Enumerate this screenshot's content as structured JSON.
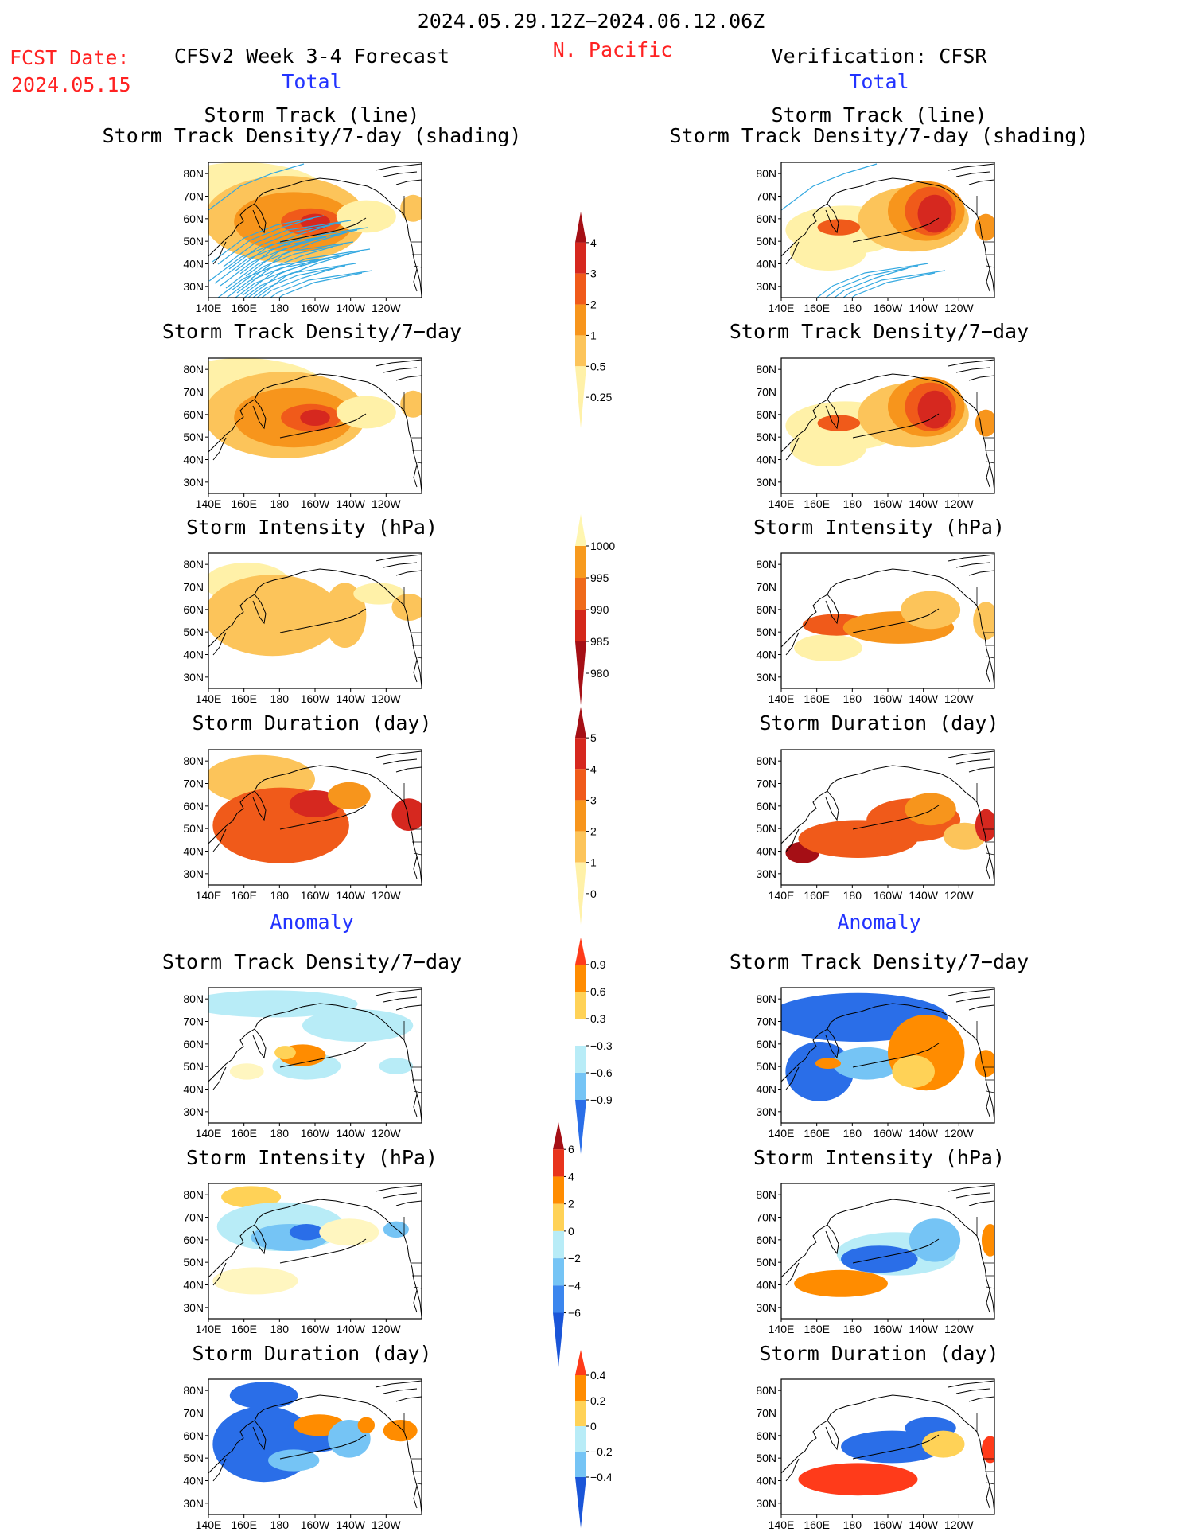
{
  "header": {
    "date_range": "2024.05.29.12Z−2024.06.12.06Z",
    "region": "N. Pacific",
    "fcst_label": "FCST Date:",
    "fcst_date": "2024.05.15",
    "model_title": "CFSv2 Week 3-4 Forecast",
    "verification_title": "Verification: CFSR"
  },
  "sections": {
    "total": "Total",
    "anomaly": "Anomaly"
  },
  "panel_titles": {
    "track_line": "Storm Track (line)",
    "track_shading": "Storm Track Density/7-day (shading)",
    "density": "Storm Track Density/7−day",
    "intensity": "Storm Intensity (hPa)",
    "duration": "Storm Duration (day)"
  },
  "map_axes": {
    "lat_ticks": [
      "80N",
      "70N",
      "60N",
      "50N",
      "40N",
      "30N"
    ],
    "lon_ticks": [
      "140E",
      "160E",
      "180",
      "160W",
      "140W",
      "120W"
    ]
  },
  "colorbars": {
    "density": {
      "labels": [
        "4",
        "3",
        "2",
        "1",
        "0.5",
        "0.25"
      ],
      "colors": [
        "#a50f15",
        "#d6281f",
        "#f05a1a",
        "#f7951c",
        "#fcc45a",
        "#fff1a8"
      ]
    },
    "intensity": {
      "labels": [
        "1000",
        "995",
        "990",
        "985",
        "980"
      ],
      "colors": [
        "#fff6b0",
        "#f79a1e",
        "#ef6a1a",
        "#d4281a",
        "#a50f15"
      ]
    },
    "duration": {
      "labels": [
        "5",
        "4",
        "3",
        "2",
        "1",
        "0"
      ],
      "colors": [
        "#a50f15",
        "#d6281f",
        "#f05a1a",
        "#f7951c",
        "#fcc45a",
        "#fff1a8"
      ]
    },
    "density_anom": {
      "labels": [
        "0.9",
        "0.6",
        "0.3",
        "−0.3",
        "−0.6",
        "−0.9"
      ],
      "colors": [
        "#ff3b1a",
        "#ff8c00",
        "#ffd257",
        "#ffffff",
        "#b8ecf7",
        "#75c4f5",
        "#2a6ee8"
      ]
    },
    "intensity_anom": {
      "labels": [
        "6",
        "4",
        "2",
        "0",
        "−2",
        "−4",
        "−6"
      ],
      "colors": [
        "#a50f15",
        "#e8341c",
        "#ff8c00",
        "#ffd257",
        "#b8ecf7",
        "#75c4f5",
        "#3b86ee",
        "#1a55d8"
      ]
    },
    "duration_anom": {
      "labels": [
        "0.4",
        "0.2",
        "0",
        "−0.2",
        "−0.4"
      ],
      "colors": [
        "#ff3b1a",
        "#ff8c00",
        "#ffd257",
        "#b8ecf7",
        "#75c4f5",
        "#1a55d8"
      ]
    }
  },
  "colors": {
    "date_title": "#000000",
    "region": "#ff2222",
    "fcst": "#ff2222",
    "section_label": "#2233ff",
    "track_line": "#33a8e0"
  }
}
